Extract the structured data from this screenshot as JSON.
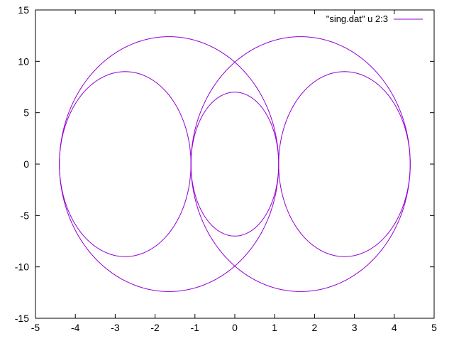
{
  "chart_data": {
    "type": "line",
    "title": "",
    "xlabel": "",
    "ylabel": "",
    "xlim": [
      -5,
      5
    ],
    "ylim": [
      -15,
      15
    ],
    "xticks": [
      -5,
      -4,
      -3,
      -2,
      -1,
      0,
      1,
      2,
      3,
      4,
      5
    ],
    "yticks": [
      -15,
      -10,
      -5,
      0,
      5,
      10,
      15
    ],
    "grid": false,
    "legend_position": "top-right",
    "series": [
      {
        "name": "\"sing.dat\" u 2:3",
        "color": "#9400d3",
        "curves": [
          {
            "cx": -1.65,
            "cy": 0,
            "rx": 2.75,
            "ry": 12.4
          },
          {
            "cx": 1.65,
            "cy": 0,
            "rx": 2.75,
            "ry": 12.4
          },
          {
            "cx": -2.75,
            "cy": 0,
            "rx": 1.65,
            "ry": 9.0
          },
          {
            "cx": 2.75,
            "cy": 0,
            "rx": 1.65,
            "ry": 9.0
          },
          {
            "cx": 0,
            "cy": 0,
            "rx": 1.1,
            "ry": 7.0
          }
        ]
      }
    ]
  }
}
